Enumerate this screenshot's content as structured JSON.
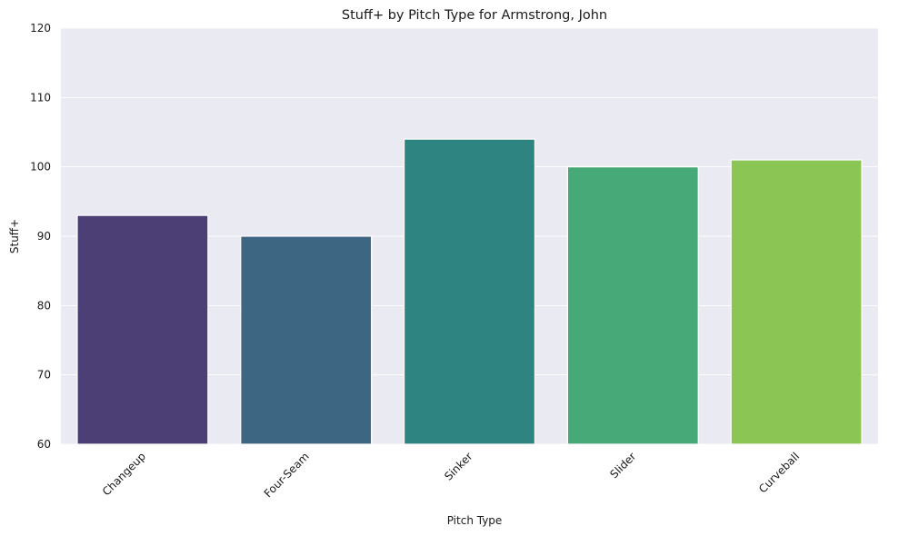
{
  "chart_data": {
    "type": "bar",
    "title": "Stuff+ by Pitch Type for Armstrong, John",
    "xlabel": "Pitch Type",
    "ylabel": "Stuff+",
    "categories": [
      "Changeup",
      "Four-Seam",
      "Sinker",
      "Slider",
      "Curveball"
    ],
    "values": [
      93,
      90,
      104,
      100,
      101
    ],
    "colors": [
      "#4b3f76",
      "#3d6682",
      "#2e8480",
      "#47a878",
      "#8bc554"
    ],
    "ylim": [
      60,
      120
    ],
    "yticks": [
      60,
      70,
      80,
      90,
      100,
      110,
      120
    ],
    "grid": true,
    "background": "#eaeaf2",
    "xtick_rotation": 45
  }
}
